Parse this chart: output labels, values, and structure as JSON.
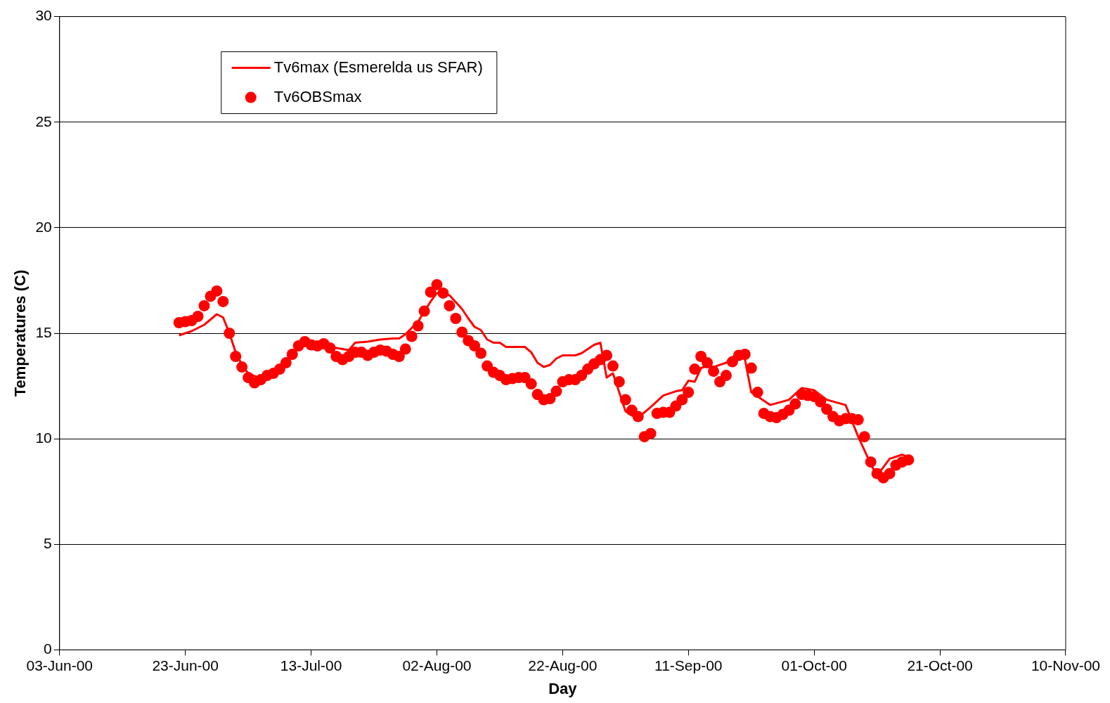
{
  "chart_data": {
    "type": "line",
    "xlabel": "Day",
    "ylabel": "Temperatures (C)",
    "xlim": [
      "2000-06-03",
      "2000-11-10"
    ],
    "xticks": [
      {
        "value": "2000-06-03",
        "label": "03-Jun-00"
      },
      {
        "value": "2000-06-23",
        "label": "23-Jun-00"
      },
      {
        "value": "2000-07-13",
        "label": "13-Jul-00"
      },
      {
        "value": "2000-08-02",
        "label": "02-Aug-00"
      },
      {
        "value": "2000-08-22",
        "label": "22-Aug-00"
      },
      {
        "value": "2000-09-11",
        "label": "11-Sep-00"
      },
      {
        "value": "2000-10-01",
        "label": "01-Oct-00"
      },
      {
        "value": "2000-10-21",
        "label": "21-Oct-00"
      },
      {
        "value": "2000-11-10",
        "label": "10-Nov-00"
      }
    ],
    "ylim": [
      0,
      30
    ],
    "yticks": [
      0,
      5,
      10,
      15,
      20,
      25,
      30
    ],
    "grid": "y",
    "legend": "top left",
    "series": [
      {
        "name": "Tv6max (Esmerelda us SFAR)",
        "type": "line",
        "color": "#ff0000",
        "marker": "none",
        "line_style": "solid",
        "x": [
          "2000-06-22",
          "2000-06-24",
          "2000-06-26",
          "2000-06-28",
          "2000-06-29",
          "2000-06-30",
          "2000-07-01",
          "2000-07-02",
          "2000-07-03",
          "2000-07-05",
          "2000-07-06",
          "2000-07-08",
          "2000-07-10",
          "2000-07-12",
          "2000-07-14",
          "2000-07-16",
          "2000-07-18",
          "2000-07-19",
          "2000-07-20",
          "2000-07-22",
          "2000-07-24",
          "2000-07-26",
          "2000-07-27",
          "2000-07-28",
          "2000-07-30",
          "2000-08-01",
          "2000-08-02",
          "2000-08-04",
          "2000-08-06",
          "2000-08-07",
          "2000-08-08",
          "2000-08-09",
          "2000-08-10",
          "2000-08-11",
          "2000-08-12",
          "2000-08-13",
          "2000-08-14",
          "2000-08-15",
          "2000-08-16",
          "2000-08-17",
          "2000-08-18",
          "2000-08-19",
          "2000-08-20",
          "2000-08-21",
          "2000-08-22",
          "2000-08-23",
          "2000-08-24",
          "2000-08-25",
          "2000-08-26",
          "2000-08-27",
          "2000-08-28",
          "2000-08-29",
          "2000-08-30",
          "2000-08-31",
          "2000-09-01",
          "2000-09-02",
          "2000-09-03",
          "2000-09-04",
          "2000-09-05",
          "2000-09-07",
          "2000-09-09",
          "2000-09-10",
          "2000-09-11",
          "2000-09-12",
          "2000-09-13",
          "2000-09-14",
          "2000-09-15",
          "2000-09-17",
          "2000-09-18",
          "2000-09-19",
          "2000-09-20",
          "2000-09-21",
          "2000-09-24",
          "2000-09-27",
          "2000-09-29",
          "2000-10-01",
          "2000-10-03",
          "2000-10-06",
          "2000-10-08",
          "2000-10-10",
          "2000-10-11",
          "2000-10-13",
          "2000-10-15",
          "2000-10-16"
        ],
        "values": [
          14.9,
          15.1,
          15.4,
          15.9,
          15.75,
          15.0,
          14.1,
          13.5,
          13.1,
          12.85,
          13.05,
          13.45,
          14.05,
          14.6,
          14.45,
          14.35,
          14.25,
          14.2,
          14.55,
          14.6,
          14.7,
          14.75,
          14.75,
          14.95,
          15.55,
          16.5,
          16.9,
          16.8,
          16.15,
          15.7,
          15.3,
          15.15,
          14.7,
          14.55,
          14.55,
          14.35,
          14.35,
          14.35,
          14.35,
          14.1,
          13.6,
          13.4,
          13.5,
          13.8,
          13.95,
          13.95,
          13.95,
          14.05,
          14.25,
          14.45,
          14.55,
          12.9,
          13.1,
          12.2,
          11.3,
          11.1,
          11.0,
          11.25,
          11.5,
          12.05,
          12.25,
          12.3,
          12.75,
          12.7,
          13.35,
          13.45,
          13.4,
          13.6,
          13.85,
          14.05,
          13.75,
          12.2,
          11.6,
          11.85,
          12.4,
          12.3,
          11.85,
          11.6,
          10.1,
          8.8,
          8.25,
          9.05,
          9.25,
          9.1
        ]
      },
      {
        "name": "Tv6OBSmax",
        "type": "scatter",
        "color": "#ff0000",
        "marker": "circle",
        "x": [
          "2000-06-22",
          "2000-06-23",
          "2000-06-24",
          "2000-06-25",
          "2000-06-26",
          "2000-06-27",
          "2000-06-28",
          "2000-06-29",
          "2000-06-30",
          "2000-07-01",
          "2000-07-02",
          "2000-07-03",
          "2000-07-04",
          "2000-07-05",
          "2000-07-06",
          "2000-07-07",
          "2000-07-08",
          "2000-07-09",
          "2000-07-10",
          "2000-07-11",
          "2000-07-12",
          "2000-07-13",
          "2000-07-14",
          "2000-07-15",
          "2000-07-16",
          "2000-07-17",
          "2000-07-18",
          "2000-07-19",
          "2000-07-20",
          "2000-07-21",
          "2000-07-22",
          "2000-07-23",
          "2000-07-24",
          "2000-07-25",
          "2000-07-26",
          "2000-07-27",
          "2000-07-28",
          "2000-07-29",
          "2000-07-30",
          "2000-07-31",
          "2000-08-01",
          "2000-08-02",
          "2000-08-03",
          "2000-08-04",
          "2000-08-05",
          "2000-08-06",
          "2000-08-07",
          "2000-08-08",
          "2000-08-09",
          "2000-08-10",
          "2000-08-11",
          "2000-08-12",
          "2000-08-13",
          "2000-08-14",
          "2000-08-15",
          "2000-08-16",
          "2000-08-17",
          "2000-08-18",
          "2000-08-19",
          "2000-08-20",
          "2000-08-21",
          "2000-08-22",
          "2000-08-23",
          "2000-08-24",
          "2000-08-25",
          "2000-08-26",
          "2000-08-27",
          "2000-08-28",
          "2000-08-29",
          "2000-08-30",
          "2000-08-31",
          "2000-09-01",
          "2000-09-02",
          "2000-09-03",
          "2000-09-04",
          "2000-09-05",
          "2000-09-06",
          "2000-09-07",
          "2000-09-08",
          "2000-09-09",
          "2000-09-10",
          "2000-09-11",
          "2000-09-12",
          "2000-09-13",
          "2000-09-14",
          "2000-09-15",
          "2000-09-16",
          "2000-09-17",
          "2000-09-18",
          "2000-09-19",
          "2000-09-20",
          "2000-09-21",
          "2000-09-22",
          "2000-09-23",
          "2000-09-24",
          "2000-09-25",
          "2000-09-26",
          "2000-09-27",
          "2000-09-28",
          "2000-09-29",
          "2000-09-30",
          "2000-10-01",
          "2000-10-02",
          "2000-10-03",
          "2000-10-04",
          "2000-10-05",
          "2000-10-06",
          "2000-10-07",
          "2000-10-08",
          "2000-10-09",
          "2000-10-10",
          "2000-10-11",
          "2000-10-12",
          "2000-10-13",
          "2000-10-14",
          "2000-10-15",
          "2000-10-16"
        ],
        "values": [
          15.5,
          15.55,
          15.6,
          15.8,
          16.3,
          16.75,
          17.0,
          16.5,
          15.0,
          13.9,
          13.4,
          12.9,
          12.65,
          12.8,
          13.0,
          13.1,
          13.3,
          13.6,
          14.0,
          14.4,
          14.6,
          14.45,
          14.4,
          14.5,
          14.3,
          13.9,
          13.75,
          13.9,
          14.1,
          14.1,
          13.95,
          14.1,
          14.2,
          14.15,
          14.0,
          13.9,
          14.25,
          14.85,
          15.35,
          16.05,
          16.95,
          17.3,
          16.9,
          16.3,
          15.7,
          15.05,
          14.65,
          14.4,
          14.05,
          13.45,
          13.15,
          13.0,
          12.8,
          12.85,
          12.9,
          12.9,
          12.6,
          12.1,
          11.85,
          11.9,
          12.25,
          12.7,
          12.8,
          12.8,
          13.0,
          13.3,
          13.55,
          13.75,
          13.95,
          13.45,
          12.7,
          11.85,
          11.35,
          11.05,
          10.1,
          10.25,
          11.2,
          11.25,
          11.25,
          11.55,
          11.85,
          12.2,
          13.3,
          13.9,
          13.6,
          13.2,
          12.7,
          13.0,
          13.65,
          13.95,
          14.0,
          13.35,
          12.2,
          11.2,
          11.05,
          11.0,
          11.15,
          11.35,
          11.65,
          12.1,
          12.05,
          12.0,
          11.75,
          11.4,
          11.05,
          10.85,
          10.95,
          10.95,
          10.9,
          10.1,
          8.9,
          8.35,
          8.15,
          8.35,
          8.75,
          8.9,
          9.0
        ]
      }
    ]
  }
}
